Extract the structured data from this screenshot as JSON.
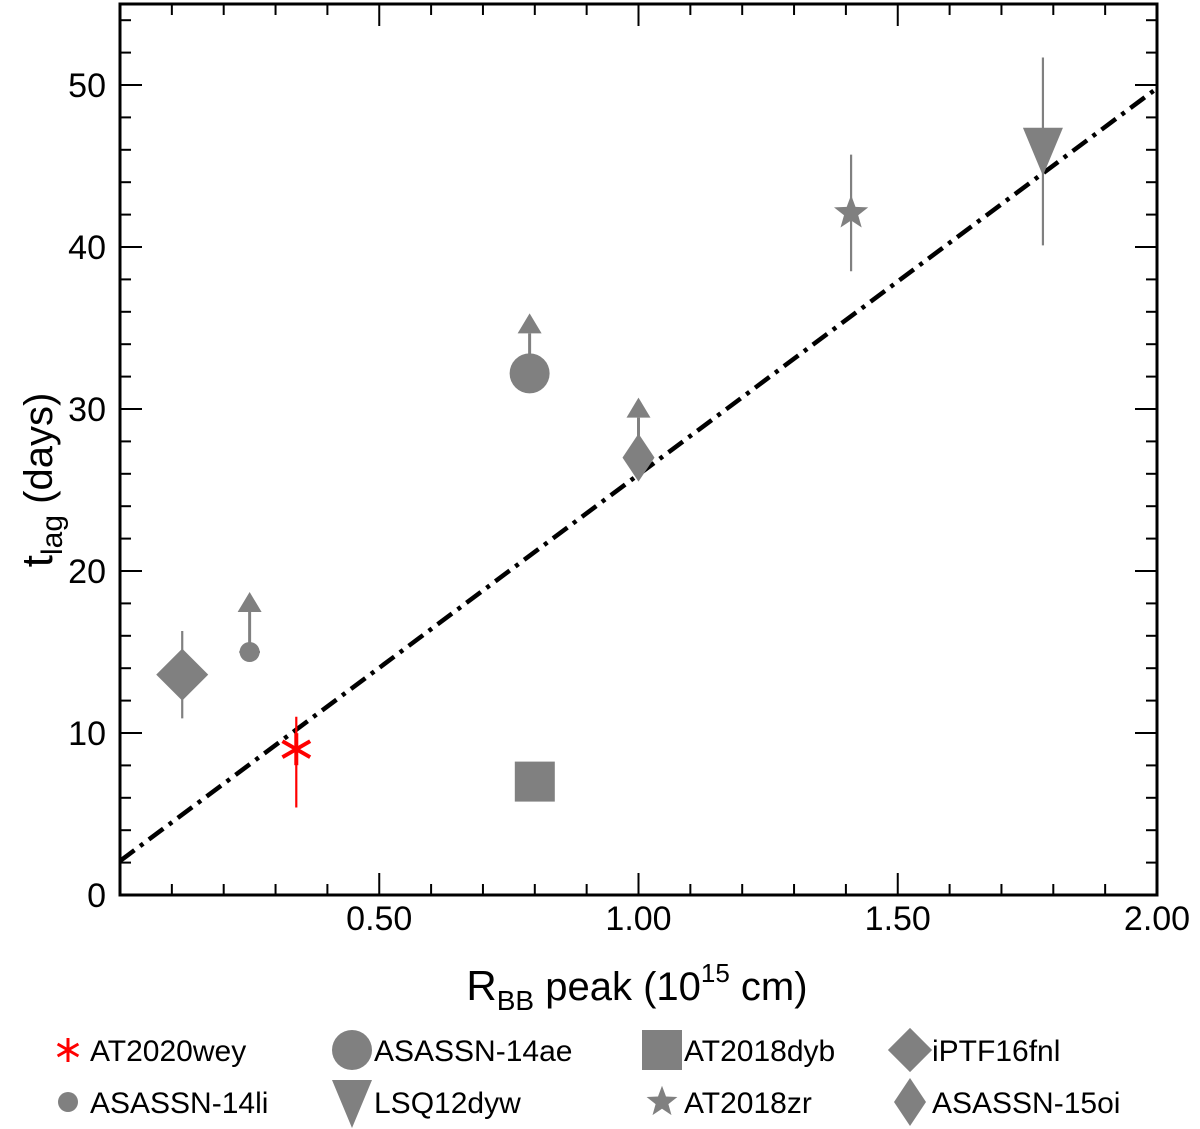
{
  "chart_data": {
    "type": "scatter",
    "xlabel": {
      "main": "R",
      "sub": "BB",
      "rest": " peak (10",
      "sup": "15",
      "end": " cm)"
    },
    "ylabel": {
      "main": "t",
      "sub": "lag",
      "rest": " (days)"
    },
    "xlim": [
      0.0,
      2.0
    ],
    "ylim": [
      0,
      55
    ],
    "xticks": [
      {
        "value": 0.5,
        "label": "0.50"
      },
      {
        "value": 1.0,
        "label": "1.00"
      },
      {
        "value": 1.5,
        "label": "1.50"
      },
      {
        "value": 2.0,
        "label": "2.00"
      }
    ],
    "yticks": [
      {
        "value": 0,
        "label": "0"
      },
      {
        "value": 10,
        "label": "10"
      },
      {
        "value": 20,
        "label": "20"
      },
      {
        "value": 30,
        "label": "30"
      },
      {
        "value": 40,
        "label": "40"
      },
      {
        "value": 50,
        "label": "50"
      }
    ],
    "fit_line": {
      "style": "dash-dot",
      "color": "#000000",
      "x": [
        0.0,
        2.0
      ],
      "y": [
        2.1,
        49.8
      ]
    },
    "series": [
      {
        "name": "AT2020wey",
        "marker": "asterisk",
        "color": "#ff0000",
        "x": 0.34,
        "y": 9.0,
        "yerr": [
          3.6,
          2.0
        ]
      },
      {
        "name": "ASASSN-14ae",
        "marker": "circle",
        "color": "#808080",
        "x": 0.79,
        "y": 32.2,
        "lower_limit": true
      },
      {
        "name": "AT2018dyb",
        "marker": "square",
        "color": "#808080",
        "x": 0.8,
        "y": 7.0
      },
      {
        "name": "iPTF16fnl",
        "marker": "diamond",
        "color": "#808080",
        "x": 0.12,
        "y": 13.6,
        "yerr": [
          2.7,
          2.7
        ]
      },
      {
        "name": "ASASSN-14li",
        "marker": "small-circle",
        "color": "#808080",
        "x": 0.25,
        "y": 15.0,
        "lower_limit": true,
        "xerr": [
          0.02,
          0.02
        ]
      },
      {
        "name": "LSQ12dyw",
        "marker": "triangle-down",
        "color": "#808080",
        "x": 1.78,
        "y": 46.0,
        "yerr": [
          5.9,
          5.7
        ]
      },
      {
        "name": "AT2018zr",
        "marker": "star",
        "color": "#808080",
        "x": 1.41,
        "y": 42.1,
        "yerr": [
          3.6,
          3.6
        ]
      },
      {
        "name": "ASASSN-15oi",
        "marker": "thin-diamond",
        "color": "#808080",
        "x": 1.0,
        "y": 27.0,
        "lower_limit": true
      }
    ],
    "legend": {
      "placement": "bottom",
      "columns": 4
    }
  }
}
